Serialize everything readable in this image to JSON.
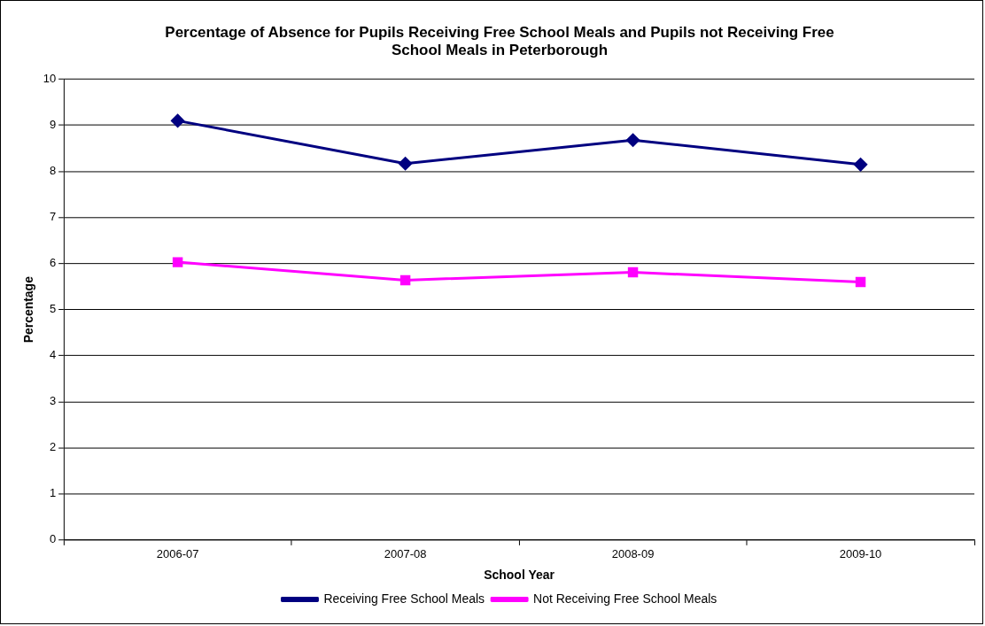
{
  "chart_data": {
    "type": "line",
    "title": "Percentage of Absence for Pupils Receiving Free School Meals and Pupils not Receiving Free School Meals in Peterborough",
    "xlabel": "School Year",
    "ylabel": "Percentage",
    "categories": [
      "2006-07",
      "2007-08",
      "2008-09",
      "2009-10"
    ],
    "series": [
      {
        "name": "Receiving Free School Meals",
        "color": "#000080",
        "values": [
          9.1,
          8.17,
          8.68,
          8.15
        ],
        "marker": "diamond"
      },
      {
        "name": "Not Receiving Free School Meals",
        "color": "#ff00ff",
        "values": [
          6.03,
          5.64,
          5.81,
          5.6
        ],
        "marker": "square"
      }
    ],
    "ylim": [
      0,
      10
    ],
    "yticks": [
      0,
      1,
      2,
      3,
      4,
      5,
      6,
      7,
      8,
      9,
      10
    ],
    "grid": "y",
    "legend": "bottom",
    "line_style": "solid"
  }
}
